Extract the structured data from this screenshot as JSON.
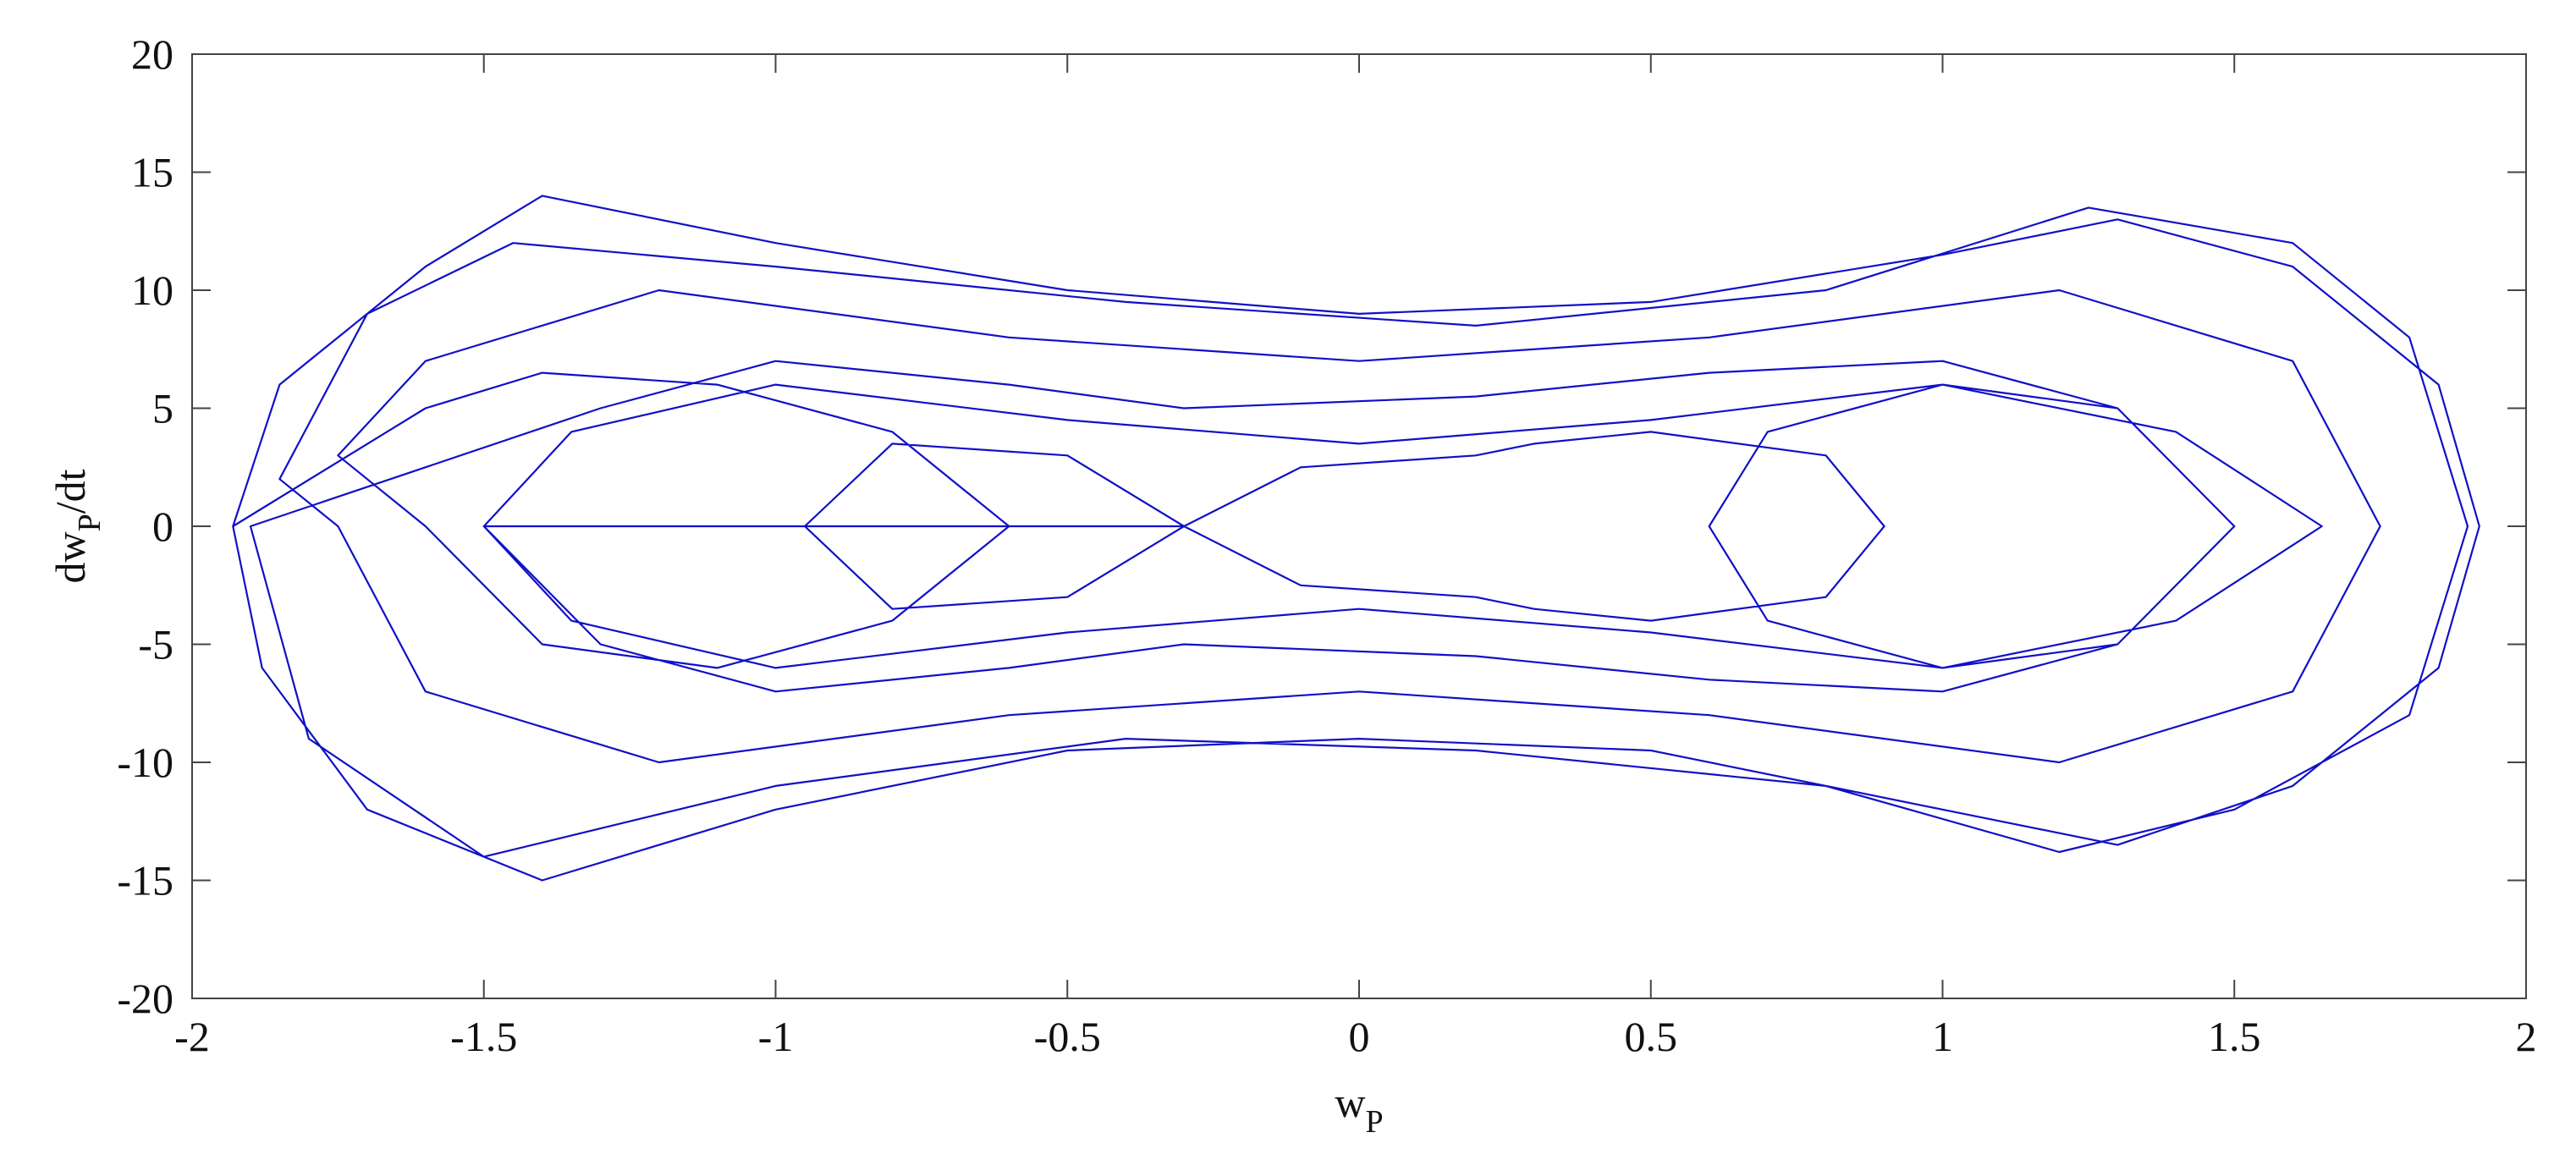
{
  "chart_data": {
    "type": "line",
    "x_label": [
      "w",
      "P"
    ],
    "y_label": [
      "dw",
      "P",
      "/dt"
    ],
    "xlim": [
      -2,
      2
    ],
    "ylim": [
      -20,
      20
    ],
    "xticks": [
      -2,
      -1.5,
      -1,
      -0.5,
      0,
      0.5,
      1,
      1.5,
      2
    ],
    "yticks": [
      -20,
      -15,
      -10,
      -5,
      0,
      5,
      10,
      15,
      20
    ],
    "grid": false,
    "series": [
      {
        "color": "#1010c8",
        "x": [
          -1.93,
          -1.85,
          -1.6,
          -1.4,
          -1.0,
          -0.5,
          0,
          0.5,
          1.0,
          1.3,
          1.6,
          1.85,
          1.92,
          1.85,
          1.6,
          1.3,
          1.0,
          0.5,
          0,
          -0.5,
          -1.0,
          -1.4,
          -1.7,
          -1.88,
          -1.93,
          -1.6,
          -1.4,
          -1.1,
          -0.8,
          -0.6,
          -0.8,
          -1.1,
          -1.4,
          -1.6,
          -1.75,
          -1.6,
          -1.2,
          -0.6,
          0,
          0.6,
          1.2,
          1.6,
          1.75,
          1.6,
          1.2,
          0.6,
          0,
          -0.6,
          -1.2,
          -1.6,
          -1.75,
          -1.85,
          -1.7,
          -1.45,
          -1.0,
          -0.4,
          0.2,
          0.8,
          1.25,
          1.6,
          1.8,
          1.9,
          1.8,
          1.5,
          1.2,
          0.8,
          0.2,
          -0.4,
          -1.0,
          -1.5,
          -1.8,
          -1.9,
          -1.3,
          -1.0,
          -0.6,
          -0.3,
          0.2,
          0.6,
          1.0,
          1.3,
          1.5,
          1.3,
          1.0,
          0.7,
          0.6,
          0.7,
          1.0,
          1.3,
          1.5,
          1.3,
          1.0,
          0.6,
          0.2,
          -0.3,
          -0.6,
          -1.0,
          -1.3,
          -1.5,
          -1.35,
          -1.0,
          -0.5,
          0,
          0.5,
          1.0,
          1.4,
          1.65,
          1.4,
          1.0,
          0.5,
          0,
          -0.5,
          -1.0,
          -1.35,
          -1.5,
          -0.3,
          -0.1,
          0.2,
          0.3,
          0.5,
          0.8,
          0.9,
          0.8,
          0.5,
          0.3,
          0.2,
          -0.1,
          -0.3,
          -0.5,
          -0.8,
          -0.95,
          -0.8,
          -0.5,
          -0.3
        ],
        "y": [
          0,
          6,
          11,
          14,
          12,
          10,
          9,
          9.5,
          11.5,
          13,
          11,
          6,
          0,
          -6,
          -11,
          -13.5,
          -12,
          -9.5,
          -9,
          -9.5,
          -12,
          -15,
          -12,
          -6,
          0,
          5,
          6.5,
          6,
          4,
          0,
          -4,
          -6,
          -5,
          0,
          3,
          7,
          10,
          8,
          7,
          8,
          10,
          7,
          0,
          -7,
          -10,
          -8,
          -7,
          -8,
          -10,
          -7,
          0,
          2,
          9,
          12,
          11,
          9.5,
          8.5,
          10,
          13.5,
          12,
          8,
          0,
          -8,
          -12,
          -13.8,
          -11,
          -9.5,
          -9,
          -11,
          -14,
          -9,
          0,
          5,
          7,
          6,
          5,
          5.5,
          6.5,
          7,
          5,
          0,
          -5,
          -6,
          -4,
          0,
          4,
          6,
          5,
          0,
          -5,
          -7,
          -6.5,
          -5.5,
          -5,
          -6,
          -7,
          -5,
          0,
          4,
          6,
          4.5,
          3.5,
          4.5,
          6,
          4,
          0,
          -4,
          -6,
          -4.5,
          -3.5,
          -4.5,
          -6,
          -4,
          0,
          0,
          2.5,
          3,
          3.5,
          4,
          3,
          0,
          -3,
          -4,
          -3.5,
          -3,
          -2.5,
          0,
          3,
          3.5,
          0,
          -3.5,
          -3,
          0
        ]
      }
    ]
  }
}
